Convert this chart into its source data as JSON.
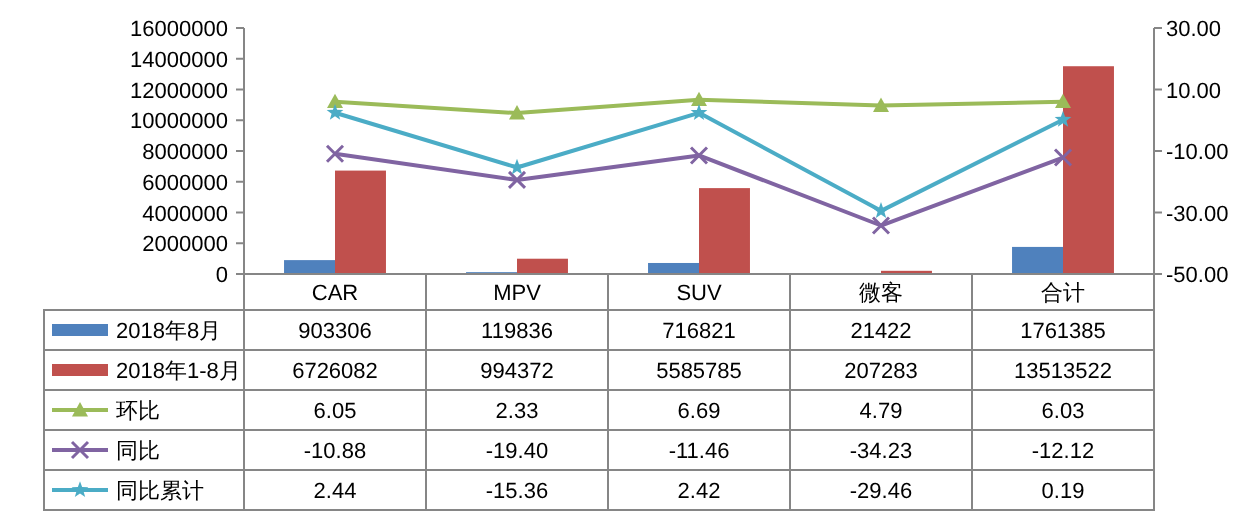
{
  "chart_data": {
    "type": "bar",
    "categories": [
      "CAR",
      "MPV",
      "SUV",
      "微客",
      "合计"
    ],
    "series": [
      {
        "name": "2018年8月",
        "color": "#4f81bd",
        "values": [
          903306,
          119836,
          716821,
          21422,
          1761385
        ],
        "value_labels": [
          "903306",
          "119836",
          "716821",
          "21422",
          "1761385"
        ]
      },
      {
        "name": "2018年1-8月",
        "color": "#c0504d",
        "values": [
          6726082,
          994372,
          5585785,
          207283,
          13513522
        ],
        "value_labels": [
          "6726082",
          "994372",
          "5585785",
          "207283",
          "13513522"
        ]
      },
      {
        "name": "环比",
        "type": "line",
        "axis": "y2",
        "marker": "triangle",
        "color": "#9bbb59",
        "values": [
          6.05,
          2.33,
          6.69,
          4.79,
          6.03
        ],
        "value_labels": [
          "6.05",
          "2.33",
          "6.69",
          "4.79",
          "6.03"
        ]
      },
      {
        "name": "同比",
        "type": "line",
        "axis": "y2",
        "marker": "cross",
        "color": "#8064a2",
        "values": [
          -10.88,
          -19.4,
          -11.46,
          -34.23,
          -12.12
        ],
        "value_labels": [
          "-10.88",
          "-19.40",
          "-11.46",
          "-34.23",
          "-12.12"
        ]
      },
      {
        "name": "同比累计",
        "type": "line",
        "axis": "y2",
        "marker": "star",
        "color": "#4bacc6",
        "values": [
          2.44,
          -15.36,
          2.42,
          -29.46,
          0.19
        ],
        "value_labels": [
          "2.44",
          "-15.36",
          "2.42",
          "-29.46",
          "0.19"
        ]
      }
    ],
    "ylim": [
      0,
      16000000
    ],
    "yticks": [
      0,
      2000000,
      4000000,
      6000000,
      8000000,
      10000000,
      12000000,
      14000000,
      16000000
    ],
    "y2lim": [
      -50,
      30
    ],
    "y2ticks": [
      {
        "value": -50,
        "label": "-50.00"
      },
      {
        "value": -30,
        "label": "-30.00"
      },
      {
        "value": -10,
        "label": "-10.00"
      },
      {
        "value": 10,
        "label": "10.00"
      },
      {
        "value": 30,
        "label": "30.00"
      }
    ],
    "legend": "bottom",
    "grid": false
  }
}
